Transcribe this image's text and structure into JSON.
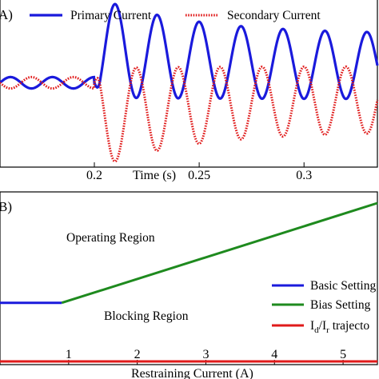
{
  "chart_data": [
    {
      "panel_label": "A)",
      "type": "line",
      "title": "",
      "xlabel": "Time (s)",
      "ylabel": "",
      "xlim": [
        0.155,
        0.335
      ],
      "ylim": [
        -1.0,
        1.0
      ],
      "xticks": [
        0.2,
        0.25,
        0.3
      ],
      "xtick_labels": [
        "0.2",
        "0.25",
        "0.3"
      ],
      "fault_time": 0.2,
      "legend_position": "top",
      "grid": false,
      "series": [
        {
          "name": "Primary Current",
          "color": "#1a1adc",
          "style": "solid",
          "pre_fault_amplitude": 0.07,
          "frequency_hz": 50,
          "peaks": [
            [
              0.2102,
              0.86
            ],
            [
              0.2305,
              0.74
            ],
            [
              0.2505,
              0.68
            ],
            [
              0.2705,
              0.64
            ],
            [
              0.2905,
              0.62
            ],
            [
              0.3105,
              0.6
            ],
            [
              0.3305,
              0.58
            ]
          ],
          "troughs": [
            [
              0.2202,
              -0.04
            ],
            [
              0.2402,
              -0.12
            ],
            [
              0.2602,
              -0.16
            ],
            [
              0.2802,
              -0.2
            ],
            [
              0.3002,
              -0.22
            ],
            [
              0.3202,
              -0.24
            ]
          ]
        },
        {
          "name": "Secondary Current",
          "color": "#e01a1a",
          "style": "dotted",
          "pre_fault_amplitude": 0.07,
          "frequency_hz": 50,
          "peaks": [
            [
              0.2202,
              0.04
            ],
            [
              0.2402,
              0.12
            ],
            [
              0.2602,
              0.16
            ],
            [
              0.2802,
              0.2
            ],
            [
              0.3002,
              0.22
            ],
            [
              0.3202,
              0.24
            ]
          ],
          "troughs": [
            [
              0.2102,
              -0.86
            ],
            [
              0.2305,
              -0.74
            ],
            [
              0.2505,
              -0.68
            ],
            [
              0.2705,
              -0.64
            ],
            [
              0.2905,
              -0.62
            ],
            [
              0.3105,
              -0.6
            ],
            [
              0.3305,
              -0.58
            ]
          ]
        }
      ]
    },
    {
      "panel_label": "B)",
      "type": "line",
      "title": "",
      "xlabel": "Restraining Current (A)",
      "ylabel": "",
      "xlim": [
        0,
        5.5
      ],
      "ylim": [
        0,
        1
      ],
      "xticks": [
        1,
        2,
        3,
        4,
        5
      ],
      "xtick_labels": [
        "1",
        "2",
        "3",
        "4",
        "5"
      ],
      "legend_position": "right",
      "grid": false,
      "annotations": [
        "Operating Region",
        "Blocking Region"
      ],
      "series": [
        {
          "name": "Basic Setting",
          "color": "#1a1adc",
          "x": [
            0,
            0.9
          ],
          "y": [
            0.37,
            0.37
          ]
        },
        {
          "name": "Bias Setting",
          "color": "#1e8a1e",
          "x": [
            0.9,
            5.5
          ],
          "y": [
            0.37,
            1.0
          ]
        },
        {
          "name": "I_d/I_r trajectory",
          "name_display": [
            "I",
            "d",
            "/I",
            "r",
            " trajecto"
          ],
          "color": "#e01a1a",
          "x": [
            0,
            5.5
          ],
          "y": [
            0.0,
            0.0
          ]
        }
      ]
    }
  ]
}
